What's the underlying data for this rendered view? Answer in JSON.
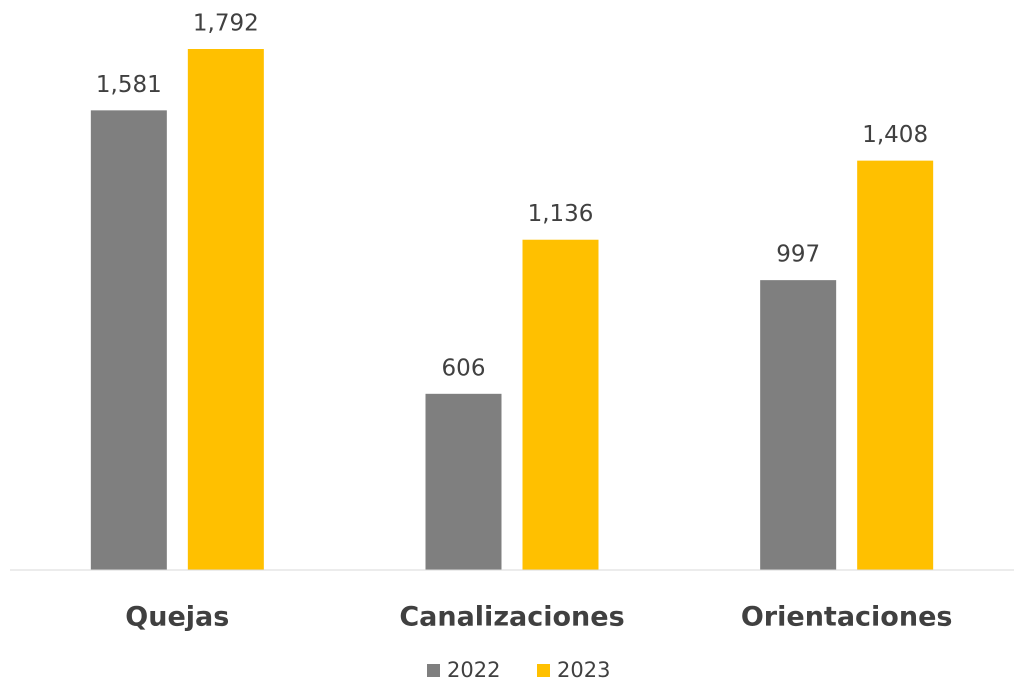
{
  "chart_data": {
    "type": "bar",
    "categories": [
      "Quejas",
      "Canalizaciones",
      "Orientaciones"
    ],
    "series": [
      {
        "name": "2022",
        "color": "#7f7f7f",
        "values": [
          1581,
          606,
          997
        ],
        "value_labels": [
          "1,581",
          "606",
          "997"
        ]
      },
      {
        "name": "2023",
        "color": "#ffc000",
        "values": [
          1792,
          1136,
          1408
        ],
        "value_labels": [
          "1,792",
          "1,136",
          "1,408"
        ]
      }
    ]
  }
}
